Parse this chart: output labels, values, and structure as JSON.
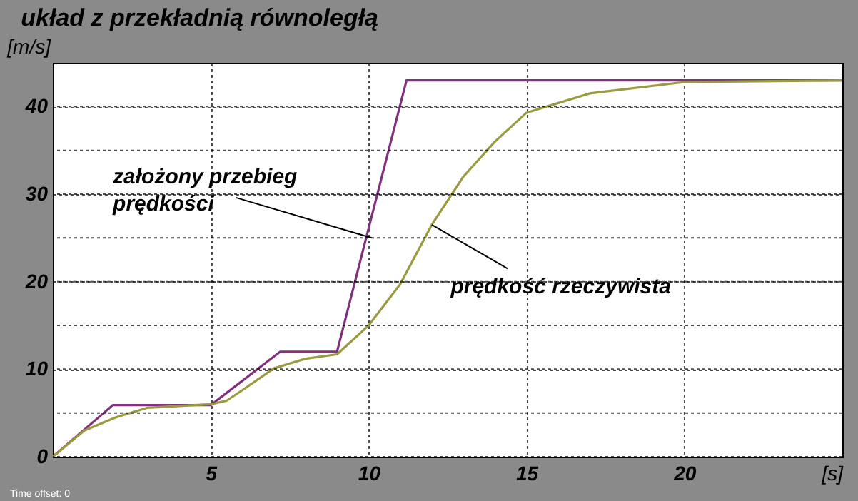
{
  "chart_data": {
    "type": "line",
    "title": "układ z przekładnią równoległą",
    "xlabel": "[s]",
    "ylabel": "[m/s]",
    "xlim": [
      0,
      25
    ],
    "xticks": [
      5,
      10,
      15,
      20
    ],
    "ylim": [
      0,
      45
    ],
    "yticks": [
      0,
      {
        "value": 5,
        "label": null
      },
      10,
      {
        "value": 15,
        "label": null
      },
      20,
      {
        "value": 25,
        "label": null
      },
      30,
      {
        "value": 35,
        "label": null
      },
      40
    ],
    "grid": true,
    "legend": false,
    "marker": "none",
    "line_style": "solid",
    "series": [
      {
        "color": "#80307f",
        "x": [
          0,
          1.9,
          5,
          7.2,
          9,
          11.2,
          25
        ],
        "values": [
          0,
          5.9,
          5.9,
          12,
          12,
          43,
          43
        ]
      },
      {
        "color": "#9a9a40",
        "x": [
          0,
          1,
          2,
          3,
          5,
          5.5,
          6,
          7,
          8,
          9,
          10,
          11,
          12,
          13,
          14,
          15,
          17,
          20,
          25
        ],
        "values": [
          0,
          3,
          4.5,
          5.6,
          6,
          6.4,
          7.6,
          10.1,
          11.2,
          11.7,
          15,
          19.7,
          26.5,
          32,
          36,
          39.3,
          41.5,
          42.8,
          43
        ]
      }
    ],
    "annotations": [
      {
        "text": "założony przebieg prędkości",
        "x": 10.1,
        "y": 25
      },
      {
        "text": "prędkość rzeczywista",
        "x": 12,
        "y": 26.5
      },
      "Time offset: 0"
    ]
  }
}
